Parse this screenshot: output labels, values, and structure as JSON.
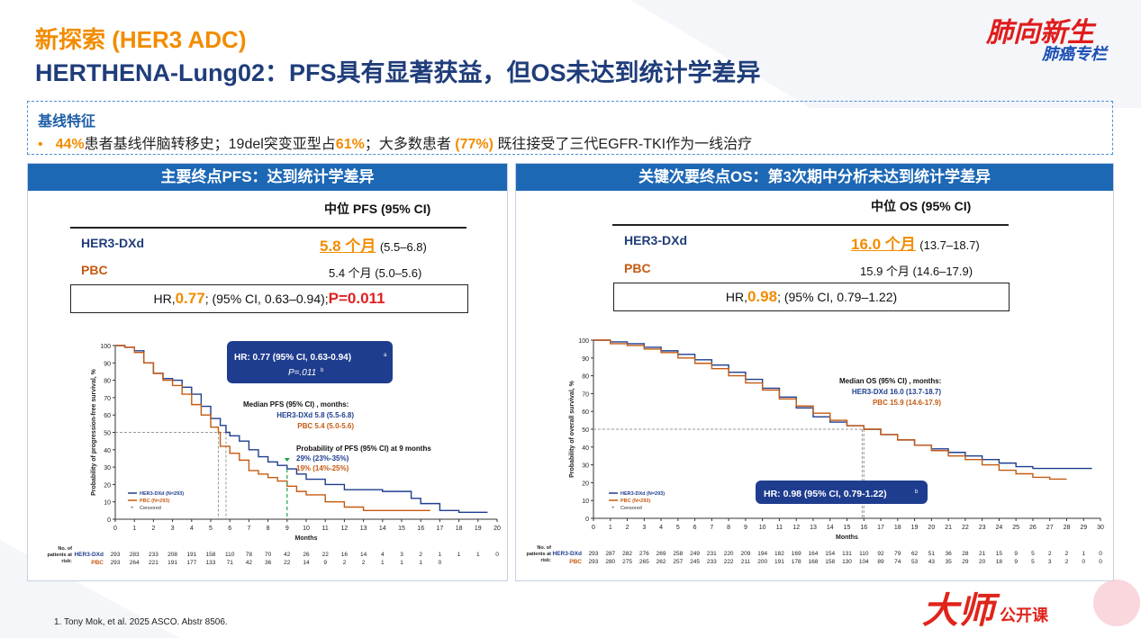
{
  "header": {
    "title_line1": "新探索 (HER3 ADC)",
    "title_line2": "HERTHENA-Lung02：PFS具有显著获益，但OS未达到统计学差异",
    "logo_top_line1": "肺向新生",
    "logo_top_line2": "肺癌专栏"
  },
  "baseline": {
    "title": "基线特征",
    "bullet": "•",
    "seg1": "44%",
    "seg2": "患者基线伴脑转移史；19del突变亚型占",
    "seg3": "61%",
    "seg4": "；大多数患者 ",
    "seg5": "(77%)",
    "seg6": " 既往接受了三代EGFR-TKI作为一线治疗"
  },
  "pfs": {
    "heading": "主要终点PFS：达到统计学差异",
    "col_head": "中位 PFS (95% CI)",
    "arm1": "HER3-DXd",
    "arm1_median": "5.8 个月",
    "arm1_ci": "(5.5–6.8)",
    "arm2": "PBC",
    "arm2_value": "5.4 个月 (5.0–5.6)",
    "hr_pre": "HR, ",
    "hr_val": "0.77",
    "hr_mid": "; (95% CI, 0.63–0.94); ",
    "p_val": "P=0.011"
  },
  "os": {
    "heading": "关键次要终点OS：第3次期中分析未达到统计学差异",
    "col_head": "中位 OS (95% CI)",
    "arm1": "HER3-DXd",
    "arm1_median": "16.0 个月",
    "arm1_ci": "(13.7–18.7)",
    "arm2": "PBC",
    "arm2_value": "15.9 个月 (14.6–17.9)",
    "hr_pre": "HR, ",
    "hr_val": "0.98",
    "hr_mid": "; (95% CI, 0.79–1.22)"
  },
  "footnote": "1.    Tony Mok, et al. 2025 ASCO. Abstr 8506.",
  "logo_bottom": {
    "line1": "大师",
    "line2": "公开课"
  },
  "colors": {
    "navy": "#1F3D7A",
    "orange": "#F28C00",
    "km_blue": "#1F3D8F",
    "km_orange": "#C55A11",
    "blue_head": "#1D68B5",
    "green": "#22A04A"
  },
  "chart_data": [
    {
      "type": "line",
      "title": "",
      "xlabel": "Months",
      "ylabel": "Probability of progression-free survival, %",
      "xlim": [
        0,
        20
      ],
      "ylim": [
        0,
        100
      ],
      "x_ticks": [
        0,
        1,
        2,
        3,
        4,
        5,
        6,
        7,
        8,
        9,
        10,
        11,
        12,
        13,
        14,
        15,
        16,
        17,
        18,
        19,
        20
      ],
      "y_ticks": [
        0,
        10,
        20,
        30,
        40,
        50,
        60,
        70,
        80,
        90,
        100
      ],
      "legend": [
        "HER3-DXd (N=293)",
        "PBC (N=293)",
        "Censored"
      ],
      "legend_position": "bottom-left",
      "series": [
        {
          "name": "HER3-DXd (N=293)",
          "color": "#1F3D8F",
          "x": [
            0,
            0.5,
            1,
            1.5,
            2,
            2.5,
            3,
            3.5,
            4,
            4.5,
            5,
            5.5,
            5.8,
            6,
            6.5,
            7,
            7.5,
            8,
            8.5,
            9,
            9.5,
            10,
            11,
            12,
            13,
            14,
            15,
            15.5,
            16,
            17,
            18,
            19,
            19.5
          ],
          "y": [
            100,
            99,
            97,
            90,
            84,
            81,
            80,
            76,
            72,
            65,
            58,
            54,
            50,
            48,
            45,
            40,
            36,
            33,
            31,
            29,
            26,
            23,
            20,
            17,
            17,
            16,
            16,
            12,
            9,
            5,
            4,
            4,
            4
          ]
        },
        {
          "name": "PBC (N=293)",
          "color": "#C55A11",
          "x": [
            0,
            0.5,
            1,
            1.5,
            2,
            2.5,
            3,
            3.5,
            4,
            4.5,
            5,
            5.4,
            5.5,
            6,
            6.5,
            7,
            7.5,
            8,
            8.5,
            9,
            9.5,
            10,
            11,
            12,
            13,
            14,
            15,
            16,
            16.5
          ],
          "y": [
            100,
            99,
            96,
            90,
            84,
            80,
            77,
            72,
            66,
            60,
            53,
            50,
            42,
            38,
            34,
            28,
            26,
            24,
            22,
            19,
            16,
            14,
            10,
            7,
            5,
            5,
            5,
            5,
            5
          ]
        }
      ],
      "annotations": {
        "hr_box": "HR: 0.77 (95% CI, 0.63-0.94)",
        "hr_box_sup": "a",
        "p_line": "P=.011",
        "p_sup": "b",
        "median_title": "Median PFS (95% CI) , months:",
        "median_her3": "HER3-DXd 5.8 (5.5-6.8)",
        "median_pbc": "PBC 5.4 (5.0-5.6)",
        "prob_title": "Probability of PFS (95% CI) at 9 months",
        "prob_her3": "29% (23%-35%)",
        "prob_pbc": "19% (14%-25%)"
      },
      "risk_table": {
        "label": "No. of patients at risk:",
        "rows": [
          {
            "arm": "HER3-DXd",
            "values": [
              "293",
              "283",
              "233",
              "208",
              "191",
              "158",
              "110",
              "78",
              "70",
              "42",
              "26",
              "22",
              "16",
              "14",
              "4",
              "3",
              "2",
              "1",
              "1",
              "1",
              "0"
            ]
          },
          {
            "arm": "PBC",
            "values": [
              "293",
              "264",
              "221",
              "191",
              "177",
              "133",
              "71",
              "42",
              "36",
              "22",
              "14",
              "9",
              "2",
              "2",
              "1",
              "1",
              "1",
              "0",
              "",
              "",
              ""
            ]
          }
        ]
      }
    },
    {
      "type": "line",
      "title": "",
      "xlabel": "Months",
      "ylabel": "Probability of overall survival, %",
      "xlim": [
        0,
        30
      ],
      "ylim": [
        0,
        100
      ],
      "x_ticks": [
        0,
        1,
        2,
        3,
        4,
        5,
        6,
        7,
        8,
        9,
        10,
        11,
        12,
        13,
        14,
        15,
        16,
        17,
        18,
        19,
        20,
        21,
        22,
        23,
        24,
        25,
        26,
        27,
        28,
        29,
        30
      ],
      "y_ticks": [
        0,
        10,
        20,
        30,
        40,
        50,
        60,
        70,
        80,
        90,
        100
      ],
      "legend": [
        "HER3-DXd (N=293)",
        "PBC (N=293)",
        "Censored"
      ],
      "legend_position": "bottom-left",
      "series": [
        {
          "name": "HER3-DXd (N=293)",
          "color": "#1F3D8F",
          "x": [
            0,
            1,
            2,
            3,
            4,
            5,
            6,
            7,
            8,
            9,
            10,
            11,
            12,
            13,
            14,
            15,
            16,
            17,
            18,
            19,
            20,
            21,
            22,
            23,
            24,
            25,
            26,
            27,
            28,
            29,
            29.5
          ],
          "y": [
            100,
            99,
            98,
            96,
            94,
            92,
            89,
            86,
            82,
            78,
            73,
            68,
            62,
            57,
            54,
            52,
            50,
            47,
            44,
            41,
            39,
            37,
            35,
            33,
            31,
            29,
            28,
            28,
            28,
            28,
            28
          ]
        },
        {
          "name": "PBC (N=293)",
          "color": "#C55A11",
          "x": [
            0,
            1,
            2,
            3,
            4,
            5,
            6,
            7,
            8,
            9,
            10,
            11,
            12,
            13,
            14,
            15,
            16,
            17,
            18,
            19,
            20,
            21,
            22,
            23,
            24,
            25,
            26,
            27,
            28
          ],
          "y": [
            100,
            98,
            97,
            95,
            93,
            90,
            87,
            84,
            80,
            76,
            72,
            67,
            63,
            59,
            55,
            52,
            50,
            47,
            44,
            41,
            38,
            35,
            33,
            30,
            27,
            25,
            23,
            22,
            22
          ]
        }
      ],
      "annotations": {
        "median_title": "Median OS (95% CI) , months:",
        "median_her3": "HER3-DXd 16.0 (13.7-18.7)",
        "median_pbc": "PBC 15.9 (14.6-17.9)",
        "hr_box": "HR: 0.98 (95% CI, 0.79-1.22)",
        "hr_box_sup": "b"
      },
      "risk_table": {
        "label": "No. of patients at risk:",
        "rows": [
          {
            "arm": "HER3-DXd",
            "values": [
              "293",
              "287",
              "282",
              "276",
              "269",
              "258",
              "249",
              "231",
              "220",
              "209",
              "194",
              "182",
              "169",
              "164",
              "154",
              "131",
              "110",
              "92",
              "79",
              "62",
              "51",
              "36",
              "28",
              "21",
              "15",
              "9",
              "5",
              "2",
              "2",
              "1",
              "0"
            ]
          },
          {
            "arm": "PBC",
            "values": [
              "293",
              "280",
              "275",
              "265",
              "262",
              "257",
              "245",
              "233",
              "222",
              "211",
              "200",
              "191",
              "178",
              "168",
              "158",
              "130",
              "104",
              "89",
              "74",
              "53",
              "43",
              "35",
              "29",
              "20",
              "18",
              "9",
              "5",
              "3",
              "2",
              "0",
              "0"
            ]
          }
        ]
      }
    }
  ]
}
